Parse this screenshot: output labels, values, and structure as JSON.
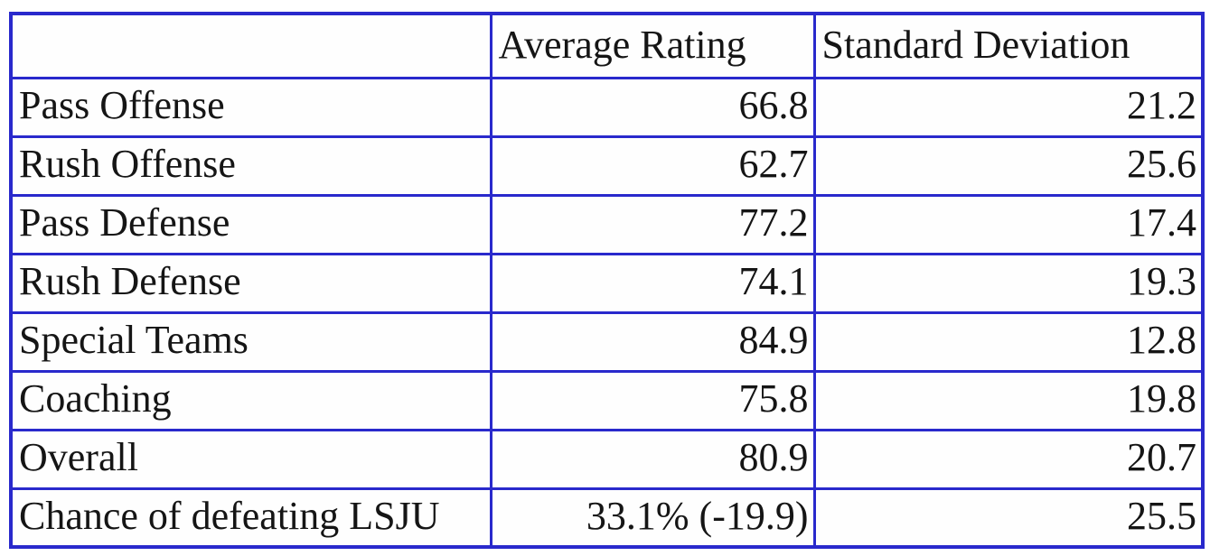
{
  "colors": {
    "border_blue": "#2929cc",
    "text": "#151515",
    "background": "#ffffff"
  },
  "chart_data": {
    "type": "table",
    "title": "",
    "columns": [
      "",
      "Average Rating",
      "Standard Deviation"
    ],
    "rows": [
      [
        "Pass Offense",
        "66.8",
        "21.2"
      ],
      [
        "Rush Offense",
        "62.7",
        "25.6"
      ],
      [
        "Pass Defense",
        "77.2",
        "17.4"
      ],
      [
        "Rush Defense",
        "74.1",
        "19.3"
      ],
      [
        "Special Teams",
        "84.9",
        "12.8"
      ],
      [
        "Coaching",
        "75.8",
        "19.8"
      ],
      [
        "Overall",
        "80.9",
        "20.7"
      ],
      [
        "Chance of defeating LSJU",
        "33.1% (-19.9)",
        "25.5"
      ]
    ]
  }
}
